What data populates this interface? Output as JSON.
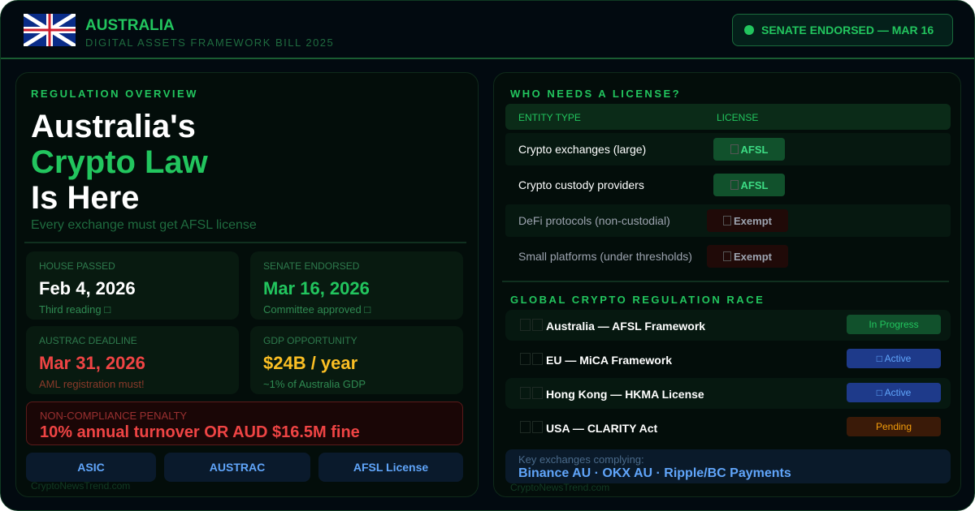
{
  "header": {
    "title": "AUSTRALIA",
    "subtitle": "DIGITAL ASSETS FRAMEWORK BILL 2025",
    "status_badge": "SENATE ENDORSED — MAR 16",
    "flag_icon": "union-jack-flag-icon"
  },
  "colors": {
    "accent": "#22c55e",
    "danger": "#ef4444",
    "warning": "#fbbf24",
    "info": "#60a5fa",
    "background": "#020a10"
  },
  "overview": {
    "section_label": "REGULATION OVERVIEW",
    "headline": [
      "Australia's",
      "Crypto Law",
      "Is Here"
    ],
    "subtitle": "Every exchange must get AFSL license",
    "cards": [
      {
        "label": "HOUSE PASSED",
        "value": "Feb 4, 2026",
        "note": "Third reading □",
        "color": "#ffffff"
      },
      {
        "label": "SENATE ENDORSED",
        "value": "Mar 16, 2026",
        "note": "Committee approved □",
        "color": "#22c55e"
      },
      {
        "label": "AUSTRAC DEADLINE",
        "value": "Mar 31, 2026",
        "note": "AML registration must!",
        "color": "#ef4444"
      },
      {
        "label": "GDP OPPORTUNITY",
        "value": "$24B / year",
        "note": "~1% of Australia GDP",
        "color": "#fbbf24"
      }
    ],
    "penalty": {
      "label": "NON-COMPLIANCE PENALTY",
      "value": "10% annual turnover OR AUD $16.5M fine"
    },
    "chips": [
      "ASIC",
      "AUSTRAC",
      "AFSL License"
    ],
    "watermark": "CryptoNewsTrend.com"
  },
  "license": {
    "section_label": "WHO NEEDS A LICENSE?",
    "columns": [
      "ENTITY TYPE",
      "LICENSE"
    ],
    "rows": [
      {
        "entity": "Crypto exchanges (large)",
        "license": "AFSL",
        "type": "afsl"
      },
      {
        "entity": "Crypto custody providers",
        "license": "AFSL",
        "type": "afsl"
      },
      {
        "entity": "DeFi protocols (non-custodial)",
        "license": "Exempt",
        "type": "exempt"
      },
      {
        "entity": "Small platforms (under thresholds)",
        "license": "Exempt",
        "type": "exempt"
      }
    ]
  },
  "race": {
    "section_label": "GLOBAL CRYPTO REGULATION RACE",
    "rows": [
      {
        "name": "Australia — AFSL Framework",
        "status": "In Progress",
        "bg": "#11512c",
        "fg": "#22c55e"
      },
      {
        "name": "EU — MiCA Framework",
        "status": "□ Active",
        "bg": "#1e3a8a",
        "fg": "#60a5fa"
      },
      {
        "name": "Hong Kong — HKMA License",
        "status": "□ Active",
        "bg": "#1e3a8a",
        "fg": "#60a5fa"
      },
      {
        "name": "USA — CLARITY Act",
        "status": "Pending",
        "bg": "#3a1a08",
        "fg": "#f59e0b"
      }
    ],
    "key_label": "Key exchanges complying:",
    "key_value": "Binance AU · OKX AU · Ripple/BC Payments",
    "watermark": "CryptoNewsTrend.com"
  }
}
